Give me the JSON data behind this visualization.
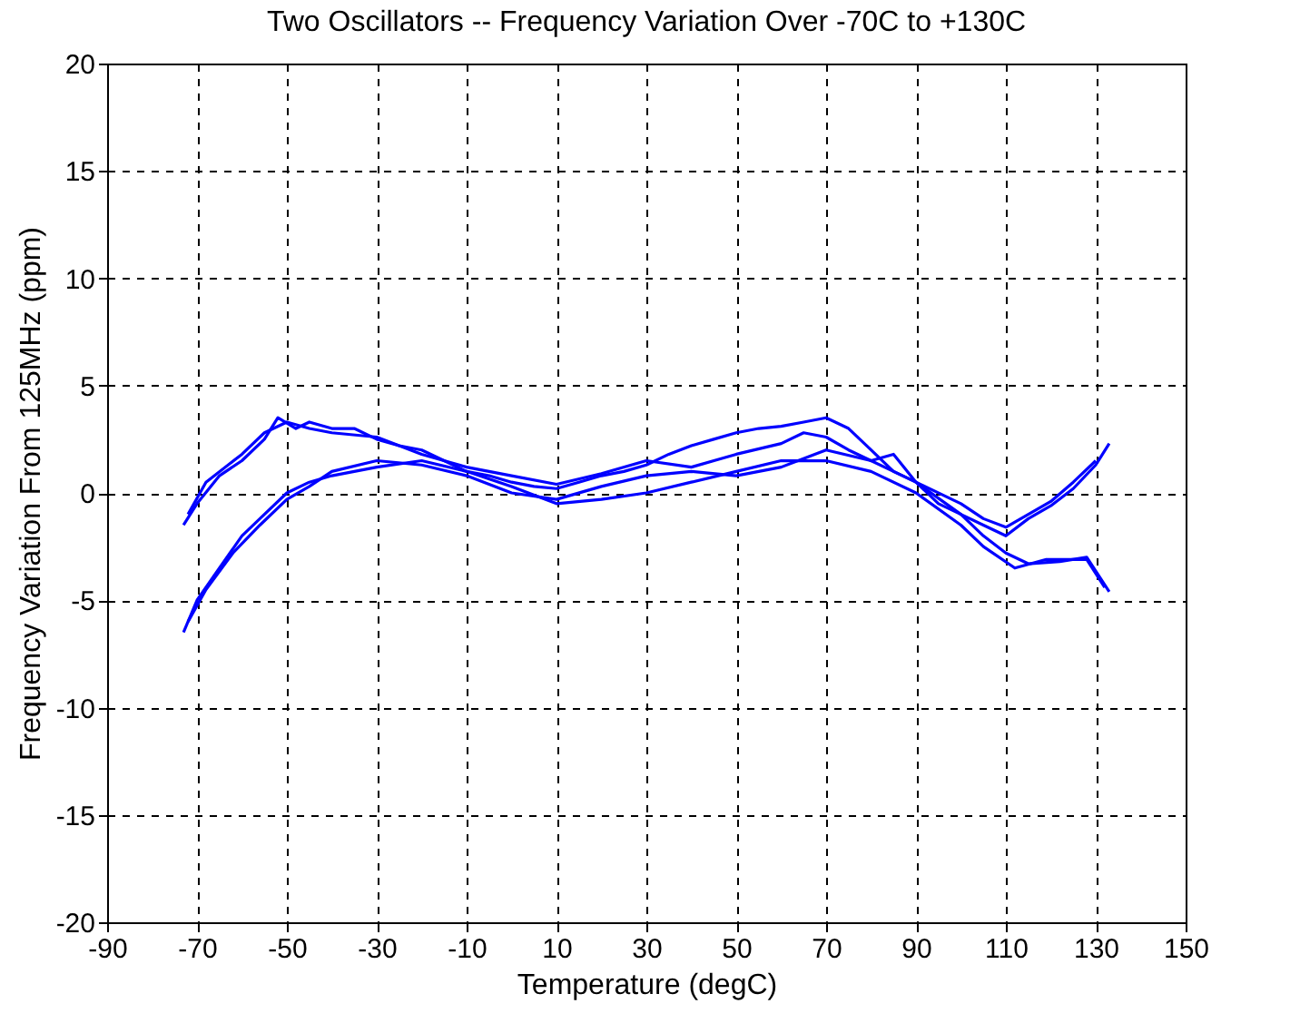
{
  "chart_data": {
    "type": "line",
    "title": "Two Oscillators -- Frequency Variation Over -70C to +130C",
    "xlabel": "Temperature (degC)",
    "ylabel": "Frequency Variation From 125MHz (ppm)",
    "xlim": [
      -90,
      150
    ],
    "xticks": [
      -90,
      -70,
      -50,
      -30,
      -10,
      10,
      30,
      50,
      70,
      90,
      110,
      130,
      150
    ],
    "ylim": [
      -20,
      20
    ],
    "yticks": [
      -20,
      -15,
      -10,
      -5,
      0,
      5,
      10,
      15,
      20
    ],
    "grid": true,
    "legend": false,
    "line_style": "solid",
    "marker": "none",
    "series": [
      {
        "color": "#0000ff",
        "x": [
          -73,
          -70,
          -65,
          -60,
          -55,
          -52,
          -48,
          -45,
          -40,
          -35,
          -30,
          -25,
          -20,
          -15,
          -10,
          -5,
          0,
          5,
          10,
          15,
          20,
          25,
          30,
          35,
          40,
          45,
          50,
          55,
          60,
          65,
          70,
          75,
          80,
          85,
          90,
          95,
          100,
          105,
          110,
          115,
          120,
          125,
          130,
          133
        ],
        "values": [
          -1.5,
          -0.5,
          0.8,
          1.5,
          2.5,
          3.5,
          3.0,
          3.3,
          3.0,
          3.0,
          2.5,
          2.2,
          2.0,
          1.5,
          1.0,
          0.8,
          0.5,
          0.3,
          0.2,
          0.5,
          0.8,
          1.0,
          1.3,
          1.8,
          2.2,
          2.5,
          2.8,
          3.0,
          3.1,
          3.3,
          3.5,
          3.0,
          2.0,
          1.0,
          0.5,
          -0.5,
          -1.0,
          -1.5,
          -2.0,
          -1.2,
          -0.6,
          0.2,
          1.3,
          2.3
        ]
      },
      {
        "color": "#0000ff",
        "x": [
          -72,
          -68,
          -60,
          -55,
          -50,
          -45,
          -40,
          -30,
          -20,
          -10,
          0,
          10,
          20,
          30,
          40,
          50,
          60,
          65,
          70,
          75,
          80,
          85,
          90,
          100,
          105,
          110,
          115,
          120,
          125,
          130
        ],
        "values": [
          -1.0,
          0.5,
          1.8,
          2.8,
          3.3,
          3.0,
          2.8,
          2.6,
          1.8,
          1.2,
          0.8,
          0.4,
          0.9,
          1.5,
          1.2,
          1.8,
          2.3,
          2.8,
          2.6,
          2.0,
          1.5,
          1.8,
          0.5,
          -0.5,
          -1.2,
          -1.6,
          -1.0,
          -0.4,
          0.5,
          1.5
        ]
      },
      {
        "color": "#0000ff",
        "x": [
          -73,
          -70,
          -65,
          -60,
          -55,
          -50,
          -45,
          -40,
          -30,
          -20,
          -10,
          0,
          10,
          20,
          30,
          40,
          50,
          60,
          70,
          80,
          90,
          100,
          105,
          112,
          119,
          128,
          132
        ],
        "values": [
          -6.5,
          -5.0,
          -3.5,
          -2.0,
          -1.0,
          0.0,
          0.5,
          0.8,
          1.2,
          1.5,
          1.0,
          0.3,
          -0.5,
          -0.3,
          0.0,
          0.5,
          1.0,
          1.5,
          1.5,
          1.0,
          0.0,
          -1.5,
          -2.5,
          -3.5,
          -3.1,
          -3.1,
          -4.4
        ]
      },
      {
        "color": "#0000ff",
        "x": [
          -72,
          -68,
          -62,
          -56,
          -50,
          -45,
          -40,
          -30,
          -20,
          -10,
          0,
          10,
          20,
          30,
          40,
          50,
          60,
          70,
          80,
          90,
          100,
          105,
          110,
          115,
          122,
          128,
          133
        ],
        "values": [
          -6.0,
          -4.5,
          -2.8,
          -1.5,
          -0.3,
          0.3,
          1.0,
          1.5,
          1.3,
          0.8,
          0.0,
          -0.3,
          0.3,
          0.8,
          1.0,
          0.8,
          1.2,
          2.0,
          1.5,
          0.5,
          -1.0,
          -2.0,
          -2.8,
          -3.3,
          -3.2,
          -3.0,
          -4.6
        ]
      }
    ]
  }
}
